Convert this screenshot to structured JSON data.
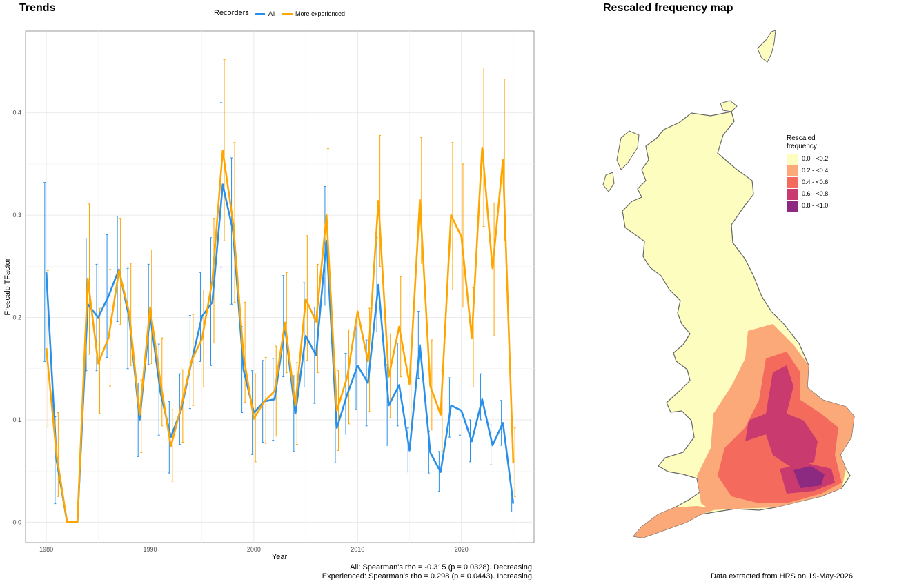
{
  "left_panel": {
    "title": "Trends"
  },
  "right_panel": {
    "title": "Rescaled frequency map"
  },
  "legend": {
    "title": "Recorders",
    "items": [
      {
        "label": "All",
        "color": "#2990EA"
      },
      {
        "label": "More experienced",
        "color": "#FFA500"
      }
    ]
  },
  "chart_data": {
    "type": "line",
    "xlabel": "Year",
    "ylabel": "Frescalo TFactor",
    "xlim": [
      1978,
      2027
    ],
    "ylim": [
      -0.02,
      0.48
    ],
    "x_ticks": [
      1980,
      1990,
      2000,
      2010,
      2020
    ],
    "y_ticks": [
      0.0,
      0.1,
      0.2,
      0.3,
      0.4
    ],
    "y_tick_labels": [
      "0.0",
      "0.1",
      "0.2",
      "0.3",
      "0.4"
    ],
    "grid": true,
    "x": [
      1980,
      1981,
      1982,
      1983,
      1984,
      1985,
      1986,
      1987,
      1988,
      1989,
      1990,
      1991,
      1992,
      1993,
      1994,
      1995,
      1996,
      1997,
      1998,
      1999,
      2000,
      2001,
      2002,
      2003,
      2004,
      2005,
      2006,
      2007,
      2008,
      2009,
      2010,
      2011,
      2012,
      2013,
      2014,
      2015,
      2016,
      2017,
      2018,
      2019,
      2020,
      2021,
      2022,
      2023,
      2024,
      2025
    ],
    "series": [
      {
        "name": "All",
        "color": "#2990EA",
        "values": [
          0.244,
          0.06,
          0.0,
          0.0,
          0.213,
          0.2,
          0.221,
          0.247,
          0.199,
          0.1,
          0.203,
          0.127,
          0.083,
          0.11,
          0.157,
          0.201,
          0.215,
          0.33,
          0.284,
          0.149,
          0.107,
          0.118,
          0.12,
          0.191,
          0.106,
          0.182,
          0.163,
          0.275,
          0.092,
          0.125,
          0.153,
          0.136,
          0.232,
          0.114,
          0.134,
          0.07,
          0.173,
          0.068,
          0.049,
          0.114,
          0.109,
          0.079,
          0.12,
          0.075,
          0.097,
          0.018
        ],
        "lower": [
          0.157,
          0.018,
          0.0,
          0.0,
          0.148,
          0.148,
          0.161,
          0.196,
          0.15,
          0.064,
          0.154,
          0.085,
          0.048,
          0.076,
          0.111,
          0.157,
          0.153,
          0.249,
          0.213,
          0.107,
          0.066,
          0.078,
          0.08,
          0.142,
          0.069,
          0.132,
          0.116,
          0.212,
          0.058,
          0.086,
          0.11,
          0.094,
          0.186,
          0.075,
          0.094,
          0.049,
          0.14,
          0.048,
          0.03,
          0.083,
          0.085,
          0.059,
          0.1,
          0.056,
          0.075,
          0.01
        ],
        "upper": [
          0.332,
          0.103,
          0.0,
          0.0,
          0.277,
          0.252,
          0.281,
          0.299,
          0.248,
          0.136,
          0.252,
          0.174,
          0.118,
          0.145,
          0.202,
          0.244,
          0.278,
          0.41,
          0.356,
          0.191,
          0.148,
          0.158,
          0.16,
          0.241,
          0.143,
          0.234,
          0.21,
          0.328,
          0.124,
          0.165,
          0.195,
          0.178,
          0.278,
          0.154,
          0.175,
          0.092,
          0.206,
          0.089,
          0.069,
          0.141,
          0.134,
          0.1,
          0.145,
          0.095,
          0.119,
          0.027
        ]
      },
      {
        "name": "More experienced",
        "color": "#FFA500",
        "values": [
          0.17,
          0.065,
          0.0,
          0.0,
          0.238,
          0.155,
          0.18,
          0.246,
          0.204,
          0.105,
          0.21,
          0.137,
          0.074,
          0.113,
          0.158,
          0.179,
          0.236,
          0.363,
          0.293,
          0.163,
          0.101,
          0.118,
          0.128,
          0.195,
          0.114,
          0.218,
          0.196,
          0.3,
          0.109,
          0.142,
          0.206,
          0.157,
          0.314,
          0.142,
          0.191,
          0.135,
          0.315,
          0.133,
          0.105,
          0.3,
          0.279,
          0.18,
          0.366,
          0.248,
          0.354,
          0.058
        ],
        "lower": [
          0.093,
          0.025,
          0.0,
          0.0,
          0.164,
          0.106,
          0.133,
          0.193,
          0.153,
          0.068,
          0.155,
          0.094,
          0.04,
          0.078,
          0.114,
          0.132,
          0.175,
          0.275,
          0.215,
          0.117,
          0.059,
          0.077,
          0.084,
          0.146,
          0.076,
          0.158,
          0.146,
          0.238,
          0.07,
          0.096,
          0.15,
          0.108,
          0.25,
          0.102,
          0.142,
          0.095,
          0.253,
          0.09,
          0.069,
          0.227,
          0.21,
          0.132,
          0.289,
          0.182,
          0.275,
          0.025
        ],
        "upper": [
          0.246,
          0.107,
          0.0,
          0.0,
          0.311,
          0.209,
          0.247,
          0.297,
          0.253,
          0.139,
          0.266,
          0.18,
          0.11,
          0.149,
          0.203,
          0.227,
          0.297,
          0.452,
          0.371,
          0.215,
          0.145,
          0.161,
          0.172,
          0.244,
          0.156,
          0.28,
          0.252,
          0.365,
          0.148,
          0.188,
          0.262,
          0.209,
          0.378,
          0.184,
          0.24,
          0.175,
          0.376,
          0.178,
          0.148,
          0.371,
          0.35,
          0.229,
          0.444,
          0.312,
          0.433,
          0.092
        ]
      }
    ]
  },
  "stats_caption": {
    "line1": "All: Spearman's rho = -0.315 (p = 0.0328). Decreasing.",
    "line2": "Experienced: Spearman's rho = 0.298 (p = 0.0443). Increasing."
  },
  "map": {
    "legend_title_line1": "Rescaled",
    "legend_title_line2": "frequency",
    "classes": [
      {
        "label": "0.0 - <0.2",
        "color": "#FCFDBF"
      },
      {
        "label": "0.2 - <0.4",
        "color": "#FCA97A"
      },
      {
        "label": "0.4 - <0.6",
        "color": "#F46A5C"
      },
      {
        "label": "0.6 - <0.8",
        "color": "#C93A6E"
      },
      {
        "label": "0.8 - <1.0",
        "color": "#8C2981"
      }
    ],
    "outline_color": "#666666"
  },
  "footer": {
    "text": "Data extracted from HRS on 19-May-2026."
  }
}
